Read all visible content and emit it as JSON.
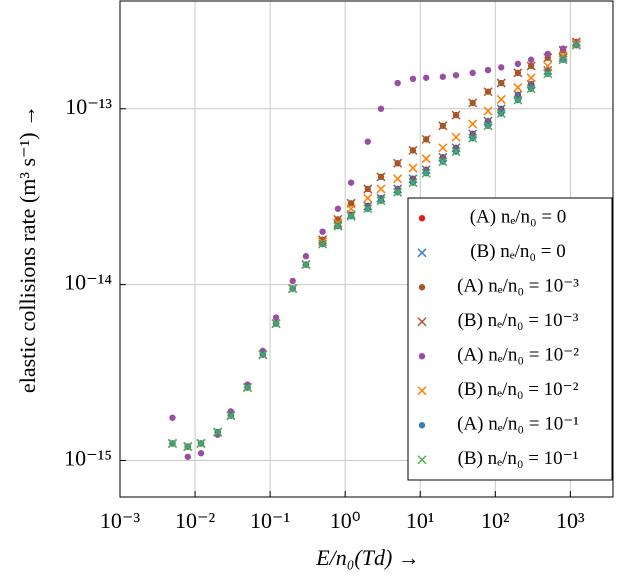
{
  "chart_data": {
    "type": "scatter",
    "xlabel": "E/n₀(Td) →",
    "ylabel": "elastic collisions rate (m³ s⁻¹)  →",
    "xscale": "log",
    "yscale": "log",
    "grid": true,
    "legend": "lower right",
    "xlim": [
      0.001,
      3700
    ],
    "ylim": [
      6.2e-16,
      4.1e-13
    ],
    "xticks": [
      {
        "value": 0.001,
        "label": "10⁻³"
      },
      {
        "value": 0.01,
        "label": "10⁻²"
      },
      {
        "value": 0.1,
        "label": "10⁻¹"
      },
      {
        "value": 1,
        "label": "10⁰"
      },
      {
        "value": 10,
        "label": "10¹"
      },
      {
        "value": 100,
        "label": "10²"
      },
      {
        "value": 1000,
        "label": "10³"
      }
    ],
    "yticks": [
      {
        "value": 1e-15,
        "label": "10⁻¹⁵"
      },
      {
        "value": 1e-14,
        "label": "10⁻¹⁴"
      },
      {
        "value": 1e-13,
        "label": "10⁻¹³"
      }
    ],
    "x": [
      0.005,
      0.008,
      0.012,
      0.02,
      0.03,
      0.05,
      0.08,
      0.12,
      0.2,
      0.3,
      0.5,
      0.8,
      1.2,
      2,
      3,
      5,
      8,
      12,
      20,
      30,
      50,
      80,
      120,
      200,
      300,
      500,
      800,
      1200
    ],
    "series": [
      {
        "name": "(A) nₑ/n₀ = 0",
        "color": "#e41a1c",
        "marker": "circle",
        "values": [
          1.25e-15,
          1.2e-15,
          1.25e-15,
          1.45e-15,
          1.8e-15,
          2.6e-15,
          4e-15,
          6e-15,
          9.5e-15,
          1.3e-14,
          1.75e-14,
          2.2e-14,
          2.5e-14,
          2.8e-14,
          3.1e-14,
          3.5e-14,
          4e-14,
          4.5e-14,
          5.3e-14,
          6e-14,
          7.2e-14,
          8.5e-14,
          1e-13,
          1.2e-13,
          1.38e-13,
          1.65e-13,
          1.95e-13,
          2.3e-13
        ]
      },
      {
        "name": "(B) nₑ/n₀ = 0",
        "color": "#377eb8",
        "marker": "cross",
        "values": [
          1.25e-15,
          1.2e-15,
          1.25e-15,
          1.45e-15,
          1.8e-15,
          2.6e-15,
          4e-15,
          6e-15,
          9.5e-15,
          1.3e-14,
          1.75e-14,
          2.2e-14,
          2.5e-14,
          2.8e-14,
          3.1e-14,
          3.5e-14,
          4e-14,
          4.5e-14,
          5.3e-14,
          6e-14,
          7.2e-14,
          8.5e-14,
          1e-13,
          1.2e-13,
          1.38e-13,
          1.65e-13,
          1.95e-13,
          2.3e-13
        ]
      },
      {
        "name": "(A) nₑ/n₀ = 10⁻³",
        "color": "#a65628",
        "marker": "circle",
        "values": [
          1.25e-15,
          1.2e-15,
          1.25e-15,
          1.45e-15,
          1.8e-15,
          2.6e-15,
          4e-15,
          6e-15,
          9.5e-15,
          1.3e-14,
          1.8e-14,
          2.35e-14,
          2.9e-14,
          3.5e-14,
          4.1e-14,
          4.9e-14,
          5.8e-14,
          6.7e-14,
          8e-14,
          9.2e-14,
          1.08e-13,
          1.25e-13,
          1.4e-13,
          1.6e-13,
          1.75e-13,
          1.95e-13,
          2.15e-13,
          2.4e-13
        ]
      },
      {
        "name": "(B) nₑ/n₀ = 10⁻³",
        "color": "#a65628",
        "marker": "cross",
        "values": [
          1.25e-15,
          1.2e-15,
          1.25e-15,
          1.45e-15,
          1.8e-15,
          2.6e-15,
          4e-15,
          6e-15,
          9.5e-15,
          1.3e-14,
          1.8e-14,
          2.35e-14,
          2.9e-14,
          3.5e-14,
          4.1e-14,
          4.9e-14,
          5.8e-14,
          6.7e-14,
          8e-14,
          9.2e-14,
          1.08e-13,
          1.25e-13,
          1.4e-13,
          1.6e-13,
          1.75e-13,
          1.95e-13,
          2.15e-13,
          2.4e-13
        ]
      },
      {
        "name": "(A) nₑ/n₀ = 10⁻²",
        "color": "#984ea3",
        "marker": "circle",
        "values": [
          1.75e-15,
          1.05e-15,
          1.1e-15,
          1.4e-15,
          1.9e-15,
          2.7e-15,
          4.2e-15,
          6.5e-15,
          1.05e-14,
          1.45e-14,
          2e-14,
          2.7e-14,
          3.8e-14,
          6.5e-14,
          1e-13,
          1.4e-13,
          1.48e-13,
          1.5e-13,
          1.52e-13,
          1.55e-13,
          1.6e-13,
          1.66e-13,
          1.72e-13,
          1.8e-13,
          1.9e-13,
          2.05e-13,
          2.2e-13,
          2.4e-13
        ]
      },
      {
        "name": "(B) nₑ/n₀ = 10⁻²",
        "color": "#ff7f00",
        "marker": "cross",
        "values": [
          1.25e-15,
          1.2e-15,
          1.25e-15,
          1.45e-15,
          1.8e-15,
          2.6e-15,
          4e-15,
          6e-15,
          9.5e-15,
          1.3e-14,
          1.75e-14,
          2.25e-14,
          2.7e-14,
          3.1e-14,
          3.5e-14,
          4e-14,
          4.6e-14,
          5.2e-14,
          6e-14,
          6.9e-14,
          8.2e-14,
          9.7e-14,
          1.13e-13,
          1.32e-13,
          1.5e-13,
          1.75e-13,
          2e-13,
          2.35e-13
        ]
      },
      {
        "name": "(A) nₑ/n₀ = 10⁻¹",
        "color": "#377eb8",
        "marker": "circle",
        "values": [
          1.25e-15,
          1.2e-15,
          1.25e-15,
          1.45e-15,
          1.8e-15,
          2.6e-15,
          4e-15,
          6e-15,
          9.5e-15,
          1.3e-14,
          1.7e-14,
          2.15e-14,
          2.45e-14,
          2.7e-14,
          3e-14,
          3.35e-14,
          3.8e-14,
          4.3e-14,
          5e-14,
          5.7e-14,
          6.8e-14,
          8e-14,
          9.4e-14,
          1.12e-13,
          1.3e-13,
          1.58e-13,
          1.9e-13,
          2.3e-13
        ]
      },
      {
        "name": "(B) nₑ/n₀ = 10⁻¹",
        "color": "#4daf4a",
        "marker": "cross",
        "values": [
          1.25e-15,
          1.2e-15,
          1.25e-15,
          1.45e-15,
          1.8e-15,
          2.6e-15,
          4e-15,
          6e-15,
          9.5e-15,
          1.3e-14,
          1.7e-14,
          2.15e-14,
          2.45e-14,
          2.7e-14,
          3e-14,
          3.35e-14,
          3.8e-14,
          4.3e-14,
          5e-14,
          5.7e-14,
          6.8e-14,
          8e-14,
          9.4e-14,
          1.12e-13,
          1.3e-13,
          1.58e-13,
          1.9e-13,
          2.3e-13
        ]
      }
    ]
  }
}
